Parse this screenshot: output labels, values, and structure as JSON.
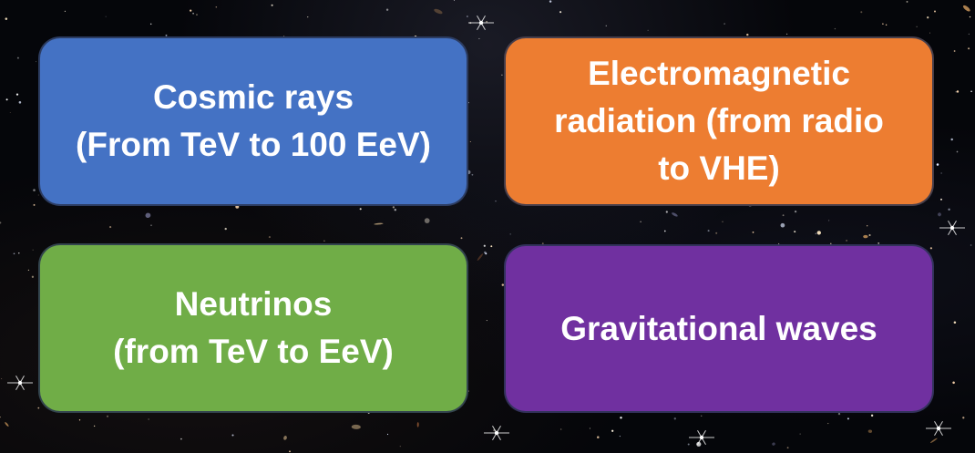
{
  "background": {
    "description_icon": "deep-field-starfield-image"
  },
  "boxes": [
    {
      "id": "cosmic",
      "label": "Cosmic rays\n(From TeV to 100 EeV)",
      "color": "#4472C4"
    },
    {
      "id": "em",
      "label": "Electromagnetic\nradiation (from radio\nto VHE)",
      "color": "#ED7D31"
    },
    {
      "id": "neu",
      "label": "Neutrinos\n(from TeV to EeV)",
      "color": "#70AD47"
    },
    {
      "id": "grav",
      "label": "Gravitational waves",
      "color": "#7030A0"
    }
  ]
}
